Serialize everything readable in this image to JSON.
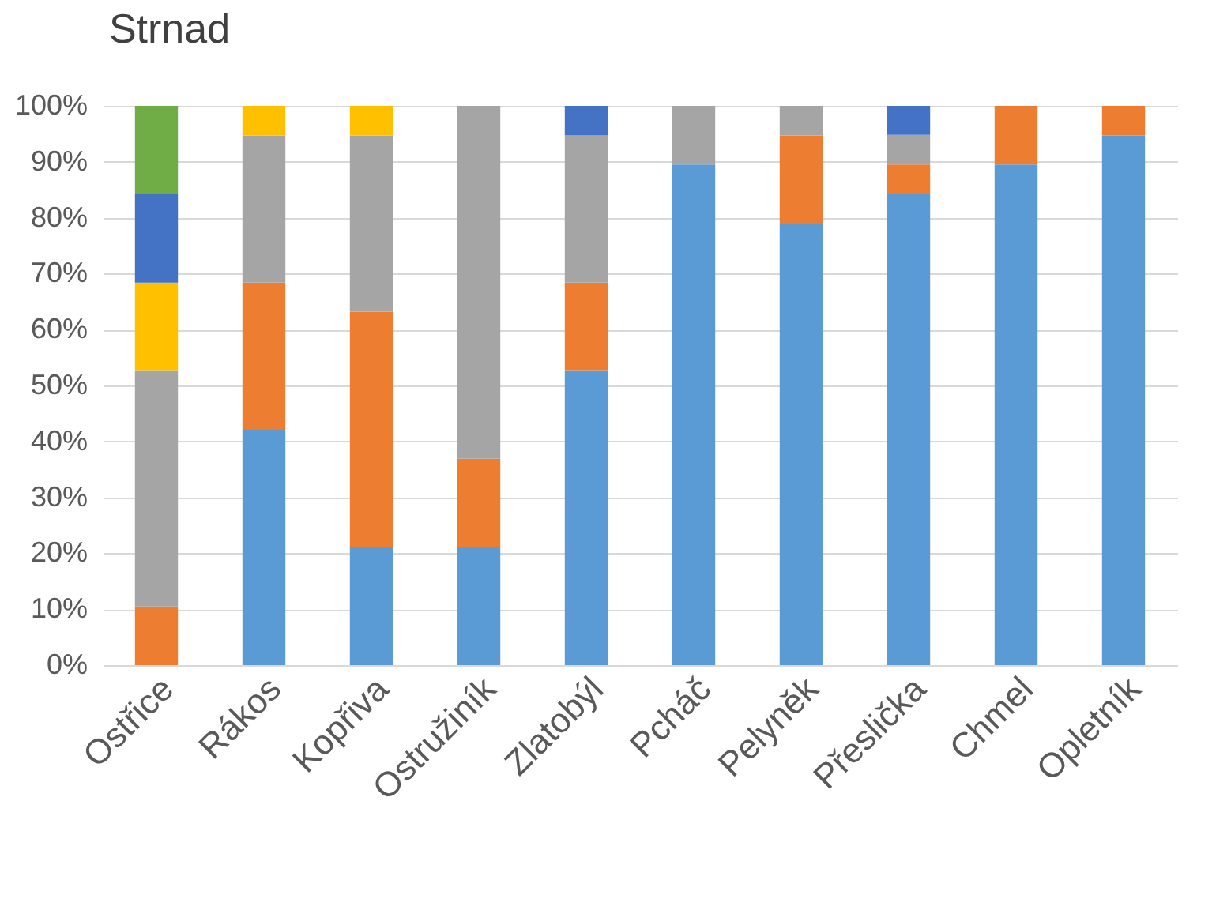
{
  "chart_data": {
    "type": "bar",
    "title": "Strnad",
    "stacked": true,
    "categories": [
      "Ostřice",
      "Rákos",
      "Kopřiva",
      "Ostružiník",
      "Zlatobýl",
      "Pcháč",
      "Pelyněk",
      "Přeslička",
      "Chmel",
      "Opletník"
    ],
    "series": [
      {
        "color": "#5b9bd5",
        "values": [
          null,
          42.1,
          21.1,
          21.1,
          52.6,
          89.5,
          78.9,
          84.2,
          89.5,
          94.7
        ]
      },
      {
        "color": "#ed7d31",
        "values": [
          10.5,
          26.3,
          42.1,
          15.8,
          15.8,
          null,
          15.8,
          5.3,
          10.5,
          5.3
        ]
      },
      {
        "color": "#a5a5a5",
        "values": [
          42.1,
          26.3,
          31.5,
          63.1,
          26.3,
          10.5,
          5.3,
          5.3,
          null,
          null
        ]
      },
      {
        "color": "#ffc000",
        "values": [
          15.8,
          5.3,
          5.3,
          null,
          null,
          null,
          null,
          null,
          null,
          null
        ]
      },
      {
        "color": "#4472c4",
        "values": [
          15.8,
          null,
          null,
          null,
          5.3,
          null,
          null,
          5.2,
          null,
          null
        ]
      },
      {
        "color": "#70ad47",
        "values": [
          15.8,
          null,
          null,
          null,
          null,
          null,
          null,
          null,
          null,
          null
        ]
      }
    ],
    "ylim": [
      0,
      100
    ],
    "yticks": [
      {
        "value": 0,
        "label": "0%"
      },
      {
        "value": 10,
        "label": "10%"
      },
      {
        "value": 20,
        "label": "20%"
      },
      {
        "value": 30,
        "label": "30%"
      },
      {
        "value": 40,
        "label": "40%"
      },
      {
        "value": 50,
        "label": "50%"
      },
      {
        "value": 60,
        "label": "60%"
      },
      {
        "value": 70,
        "label": "70%"
      },
      {
        "value": 80,
        "label": "80%"
      },
      {
        "value": 90,
        "label": "90%"
      },
      {
        "value": 100,
        "label": "100%"
      }
    ],
    "grid": "y",
    "legend": false
  }
}
